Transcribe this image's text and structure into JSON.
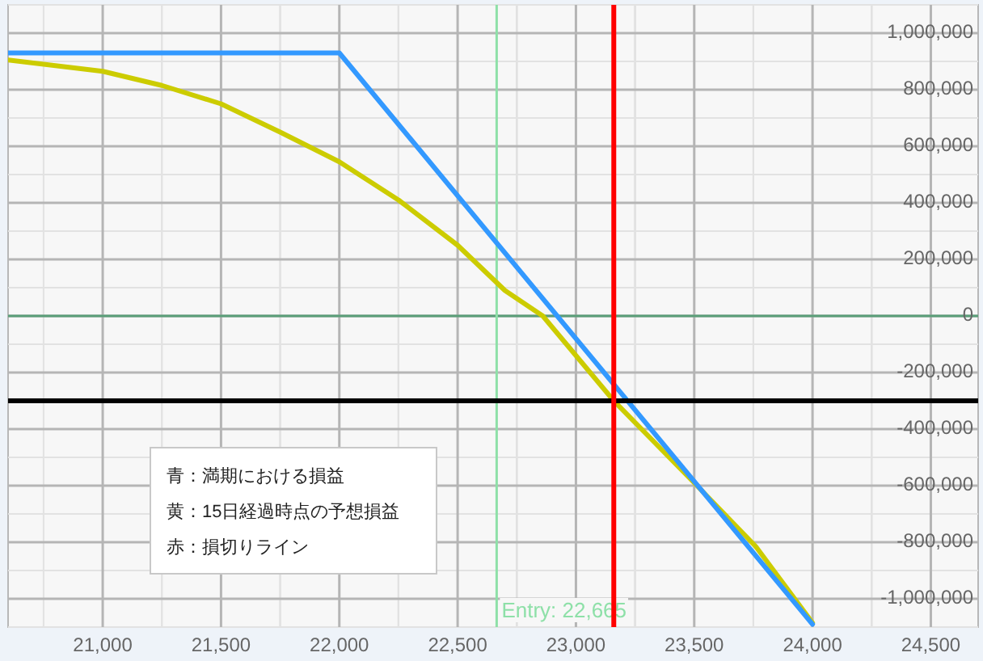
{
  "chart_data": {
    "type": "line",
    "xlim": [
      20600,
      24700
    ],
    "ylim": [
      -1100000,
      1100000
    ],
    "xticks": [
      {
        "value": 21000,
        "label": "21,000"
      },
      {
        "value": 21500,
        "label": "21,500"
      },
      {
        "value": 22000,
        "label": "22,000"
      },
      {
        "value": 22500,
        "label": "22,500"
      },
      {
        "value": 23000,
        "label": "23,000"
      },
      {
        "value": 23500,
        "label": "23,500"
      },
      {
        "value": 24000,
        "label": "24,000"
      },
      {
        "value": 24500,
        "label": "24,500"
      }
    ],
    "yticks": [
      {
        "value": -1000000,
        "label": "-1,000,000"
      },
      {
        "value": -800000,
        "label": "-800,000"
      },
      {
        "value": -600000,
        "label": "-600,000"
      },
      {
        "value": -400000,
        "label": "-400,000"
      },
      {
        "value": -200000,
        "label": "-200,000"
      },
      {
        "value": 0,
        "label": "0"
      },
      {
        "value": 200000,
        "label": "200,000"
      },
      {
        "value": 400000,
        "label": "400,000"
      },
      {
        "value": 600000,
        "label": "600,000"
      },
      {
        "value": 800000,
        "label": "800,000"
      },
      {
        "value": 1000000,
        "label": "1,000,000"
      }
    ],
    "grid": true,
    "series": [
      {
        "color": "#cccc00",
        "x": [
          20600,
          21000,
          21250,
          21500,
          21750,
          22000,
          22250,
          22500,
          22700,
          22860,
          23160,
          23500,
          23760,
          24000
        ],
        "values": [
          905000,
          865000,
          815000,
          750000,
          650000,
          545000,
          410000,
          250000,
          90000,
          0,
          -300000,
          -590000,
          -815000,
          -1085000
        ]
      },
      {
        "color": "#3399ff",
        "x": [
          20600,
          22000,
          24000
        ],
        "values": [
          930000,
          930000,
          -1090000
        ]
      }
    ],
    "ref_lines": [
      {
        "axis": "y",
        "value": 0,
        "color": "#5a9e78"
      },
      {
        "axis": "x",
        "value": 22665,
        "label": "Entry: 22,665",
        "color": "#8ee0a8"
      },
      {
        "axis": "y",
        "value": -300000,
        "color": "#000000"
      },
      {
        "axis": "x",
        "value": 23160,
        "color": "#ff0000"
      }
    ],
    "annotations": [
      "青：満期における損益",
      "黄：15日経過時点の予想損益",
      "赤：損切りライン"
    ]
  }
}
